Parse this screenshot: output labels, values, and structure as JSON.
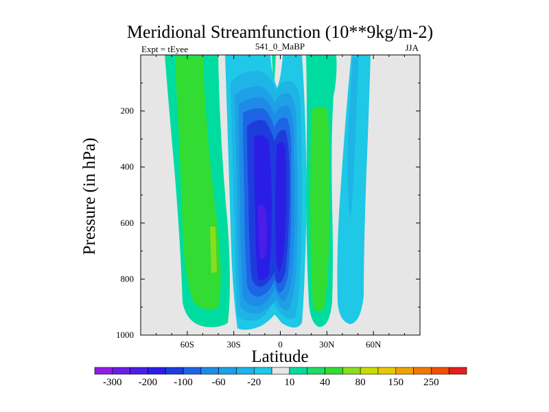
{
  "chart_data": {
    "type": "contour",
    "title": "Meridional Streamfunction (10**9kg/m-2)",
    "left_string": "Expt = tEyee",
    "center_string": "541_0_MaBP",
    "right_string": "JJA",
    "xlabel": "Latitude",
    "ylabel": "Pressure (in hPa)",
    "xlim": [
      -90,
      90
    ],
    "ylim": [
      1000,
      0
    ],
    "x_ticks": [
      -60,
      -30,
      0,
      30,
      60
    ],
    "x_tick_labels": [
      "60S",
      "30S",
      "0",
      "30N",
      "60N"
    ],
    "y_ticks": [
      200,
      400,
      600,
      800,
      1000
    ],
    "y_tick_labels": [
      "200",
      "400",
      "600",
      "800",
      "1000"
    ],
    "contour_levels": [
      -300,
      -250,
      -200,
      -150,
      -100,
      -80,
      -60,
      -40,
      -20,
      -10,
      10,
      20,
      40,
      60,
      80,
      100,
      150,
      200,
      250,
      300
    ],
    "colorbar_labels": [
      "-300",
      "-200",
      "-100",
      "-60",
      "-20",
      "10",
      "40",
      "80",
      "150",
      "250"
    ],
    "colorbar_colors": [
      "#8f1ee6",
      "#6a1ee6",
      "#4a1ee6",
      "#2a1ee6",
      "#1e3cdc",
      "#1e64e6",
      "#1e8ce6",
      "#1ea0e6",
      "#1eb4e6",
      "#1ec8e6",
      "#e6e6e6",
      "#00dca0",
      "#1edc64",
      "#32dc32",
      "#8cdc1e",
      "#c8dc00",
      "#e6c800",
      "#f0a000",
      "#f07800",
      "#f05000",
      "#e61e1e"
    ],
    "background_color": "#e6e6e6",
    "cells": [
      {
        "name": "cell-sh-high-lat-positive",
        "center_lat": -48,
        "center_p": 600,
        "level": 40,
        "peak_level": 80
      },
      {
        "name": "cell-hadley-south-negative",
        "center_lat": -15,
        "center_p": 550,
        "level": -100,
        "peak_level": -150
      },
      {
        "name": "cell-hadley-north-negative",
        "center_lat": 6,
        "center_p": 550,
        "level": -100,
        "peak_level": -150
      },
      {
        "name": "cell-nh-ferrel-positive",
        "center_lat": 28,
        "center_p": 500,
        "level": 40
      },
      {
        "name": "cell-nh-polar-negative",
        "center_lat": 50,
        "center_p": 500,
        "level": -10
      }
    ]
  }
}
